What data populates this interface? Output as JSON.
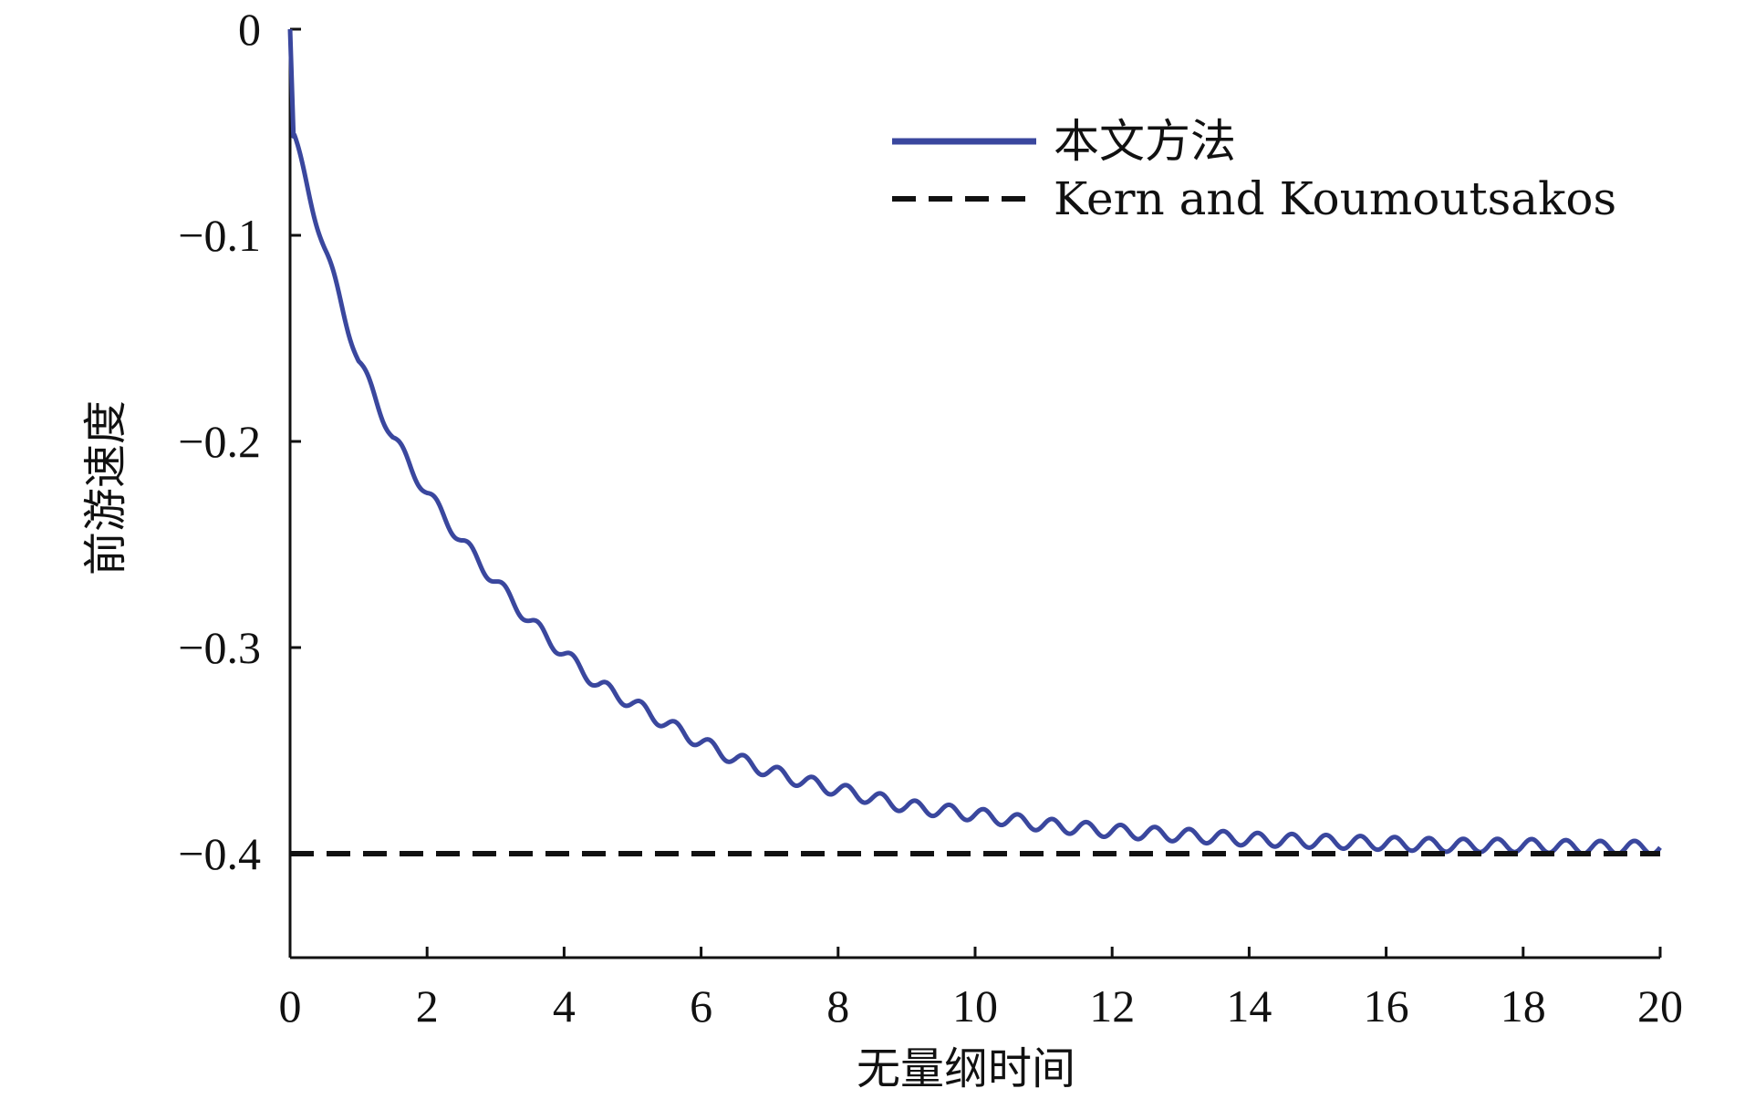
{
  "chart_data": {
    "type": "line",
    "xlabel": "无量纲时间",
    "ylabel": "前游速度",
    "xlim": [
      0,
      20
    ],
    "ylim": [
      -0.45,
      0.0
    ],
    "x_ticks": [
      0,
      2,
      4,
      6,
      8,
      10,
      12,
      14,
      16,
      18,
      20
    ],
    "y_ticks": [
      0,
      -0.1,
      -0.2,
      -0.3,
      -0.4
    ],
    "x_tick_labels": [
      "0",
      "2",
      "4",
      "6",
      "8",
      "10",
      "12",
      "14",
      "16",
      "18",
      "20"
    ],
    "y_tick_labels": [
      "0",
      "−0.1",
      "−0.2",
      "−0.3",
      "−0.4"
    ],
    "grid": false,
    "legend_position": "top-right",
    "series": [
      {
        "name": "本文方法",
        "style": "solid",
        "color": "#3a479e",
        "x": [
          0,
          0.05,
          0.5,
          1,
          1.5,
          2,
          2.5,
          3,
          3.5,
          4,
          4.5,
          5,
          5.5,
          6,
          6.5,
          7,
          7.5,
          8,
          8.5,
          9,
          9.5,
          10,
          11,
          12,
          13,
          14,
          15,
          16,
          17,
          18,
          19,
          20
        ],
        "values": [
          0,
          -0.052,
          -0.106,
          -0.161,
          -0.198,
          -0.225,
          -0.248,
          -0.268,
          -0.287,
          -0.303,
          -0.318,
          -0.327,
          -0.337,
          -0.346,
          -0.354,
          -0.36,
          -0.365,
          -0.369,
          -0.373,
          -0.377,
          -0.379,
          -0.381,
          -0.386,
          -0.389,
          -0.391,
          -0.393,
          -0.394,
          -0.395,
          -0.396,
          -0.396,
          -0.397,
          -0.397
        ]
      },
      {
        "name": "Kern and Koumoutsakos",
        "style": "dashed",
        "color": "#111111",
        "x": [
          0,
          20
        ],
        "values": [
          -0.4,
          -0.4
        ]
      }
    ]
  }
}
